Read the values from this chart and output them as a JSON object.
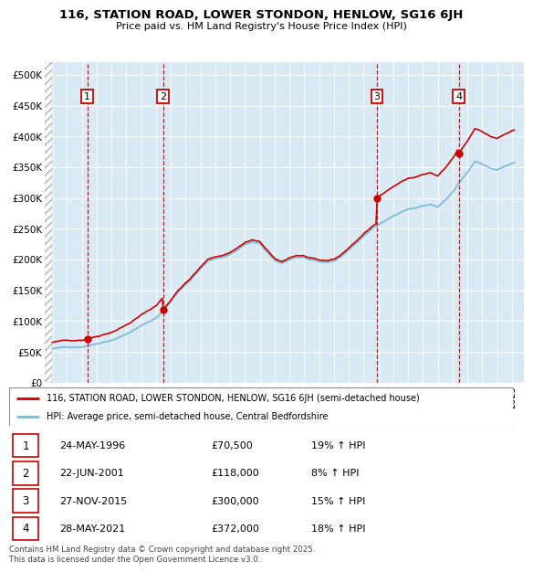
{
  "title1": "116, STATION ROAD, LOWER STONDON, HENLOW, SG16 6JH",
  "title2": "Price paid vs. HM Land Registry's House Price Index (HPI)",
  "ylim": [
    0,
    520000
  ],
  "yticks": [
    0,
    50000,
    100000,
    150000,
    200000,
    250000,
    300000,
    350000,
    400000,
    450000,
    500000
  ],
  "ytick_labels": [
    "£0",
    "£50K",
    "£100K",
    "£150K",
    "£200K",
    "£250K",
    "£300K",
    "£350K",
    "£400K",
    "£450K",
    "£500K"
  ],
  "xlim_start": 1993.5,
  "xlim_end": 2025.8,
  "sale_dates": [
    1996.37,
    2001.47,
    2015.9,
    2021.41
  ],
  "sale_prices": [
    70500,
    118000,
    300000,
    372000
  ],
  "sale_labels": [
    "1",
    "2",
    "3",
    "4"
  ],
  "hpi_line_color": "#7bb8d8",
  "red_line_color": "#cc0000",
  "dashed_line_color": "#cc0000",
  "bg_color": "#daeaf5",
  "legend_label_red": "116, STATION ROAD, LOWER STONDON, HENLOW, SG16 6JH (semi-detached house)",
  "legend_label_blue": "HPI: Average price, semi-detached house, Central Bedfordshire",
  "table_entries": [
    {
      "num": "1",
      "date": "24-MAY-1996",
      "price": "£70,500",
      "pct": "19% ↑ HPI"
    },
    {
      "num": "2",
      "date": "22-JUN-2001",
      "price": "£118,000",
      "pct": "8% ↑ HPI"
    },
    {
      "num": "3",
      "date": "27-NOV-2015",
      "price": "£300,000",
      "pct": "15% ↑ HPI"
    },
    {
      "num": "4",
      "date": "28-MAY-2021",
      "price": "£372,000",
      "pct": "18% ↑ HPI"
    }
  ],
  "footer": "Contains HM Land Registry data © Crown copyright and database right 2025.\nThis data is licensed under the Open Government Licence v3.0."
}
